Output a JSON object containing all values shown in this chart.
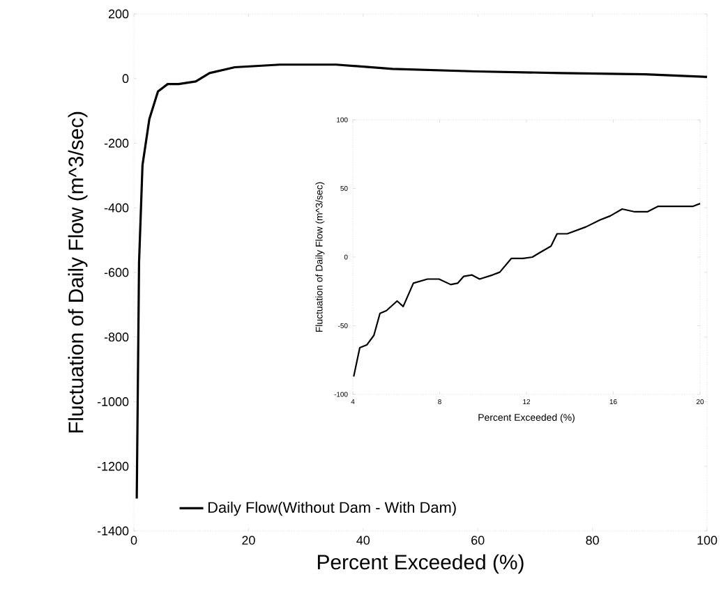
{
  "chart_data": [
    {
      "type": "line",
      "xlabel": "Percent Exceeded (%)",
      "ylabel": "Fluctuation of Daily Flow (m^3/sec)",
      "xlim": [
        0,
        100
      ],
      "ylim": [
        -1400,
        200
      ],
      "xticks": [
        0,
        20,
        40,
        60,
        80,
        100
      ],
      "yticks": [
        -1400,
        -1200,
        -1000,
        -800,
        -600,
        -400,
        -200,
        0,
        200
      ],
      "legend": "bottom left",
      "marker": "none",
      "line_style": "solid",
      "series": [
        {
          "name": "Daily Flow(Without Dam - With Dam)",
          "color": "#000000",
          "x": [
            0.5,
            0.9,
            1.5,
            2.7,
            4.2,
            5.9,
            7.8,
            10.8,
            13.2,
            17.6,
            25.5,
            35.3,
            45.1,
            59.8,
            74.5,
            89.2,
            100
          ],
          "values": [
            -1300,
            -570,
            -268,
            -125,
            -40,
            -17,
            -17,
            -9,
            17,
            35,
            43,
            43,
            30,
            22,
            17,
            13,
            5
          ]
        }
      ]
    },
    {
      "type": "line",
      "xlabel": "Percent Exceeded (%)",
      "ylabel": "Fluctuation of Daily Flow (m^3/sec)",
      "xlim": [
        4,
        20
      ],
      "ylim": [
        -100,
        100
      ],
      "xticks": [
        4,
        8,
        12,
        16,
        20
      ],
      "yticks": [
        {
          "value": -100,
          "label": "-100"
        },
        -50,
        0,
        50,
        100
      ],
      "marker": "none",
      "line_style": "solid",
      "series": [
        {
          "color": "#000000",
          "x": [
            4.04,
            4.32,
            4.64,
            4.97,
            5.25,
            5.55,
            6.04,
            6.32,
            6.79,
            7.44,
            7.97,
            8.51,
            8.83,
            9.11,
            9.48,
            9.84,
            10.44,
            10.77,
            11.3,
            11.84,
            12.27,
            12.59,
            13.13,
            13.41,
            13.88,
            14.74,
            15.38,
            15.86,
            16.41,
            16.99,
            17.57,
            18.07,
            18.82,
            19.68,
            20
          ],
          "values": [
            -87,
            -66,
            -64,
            -57,
            -41,
            -39,
            -32,
            -36,
            -19,
            -16,
            -16,
            -20,
            -19,
            -14,
            -13,
            -16,
            -13,
            -11,
            -1,
            -1,
            0,
            3,
            8,
            17,
            17,
            22,
            27,
            30,
            35,
            33,
            33,
            37,
            37,
            37,
            39
          ]
        }
      ]
    }
  ]
}
